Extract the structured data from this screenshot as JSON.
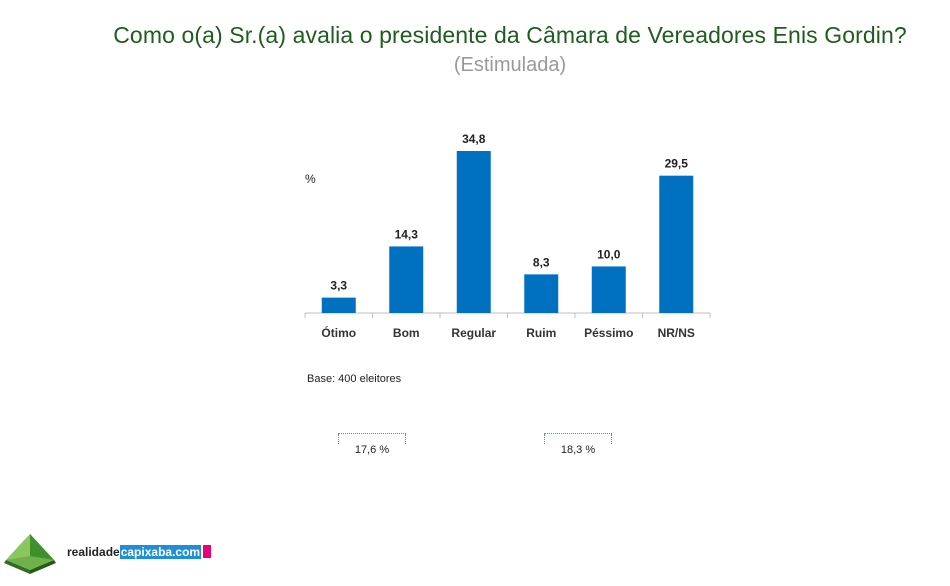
{
  "title": "Como o(a) Sr.(a) avalia o presidente da Câmara de Vereadores Enis Gordin?",
  "subtitle": "(Estimulada)",
  "chart_data": {
    "type": "bar",
    "title": "Como o(a) Sr.(a) avalia o presidente da Câmara de Vereadores Enis Gordin?",
    "subtitle": "(Estimulada)",
    "ylabel": "%",
    "categories": [
      "Ótimo",
      "Bom",
      "Regular",
      "Ruim",
      "Péssimo",
      "NR/NS"
    ],
    "values": [
      3.3,
      14.3,
      34.8,
      8.3,
      10.0,
      29.5
    ],
    "value_labels": [
      "3,3",
      "14,3",
      "34,8",
      "8,3",
      "10,0",
      "29,5"
    ],
    "ylim": [
      0,
      34.8
    ],
    "grid": false,
    "legend": "none",
    "bar_color": "#0070c0"
  },
  "base_note": "Base: 400 eleitores",
  "summary": {
    "positive": "17,6 %",
    "negative": "18,3 %"
  },
  "logo": {
    "text_plain": "realidade",
    "text_highlight": "capixaba.com",
    "highlight_color": "#1e8fd6",
    "accent_color": "#e6007e",
    "icon": "green-pyramid-icon"
  }
}
